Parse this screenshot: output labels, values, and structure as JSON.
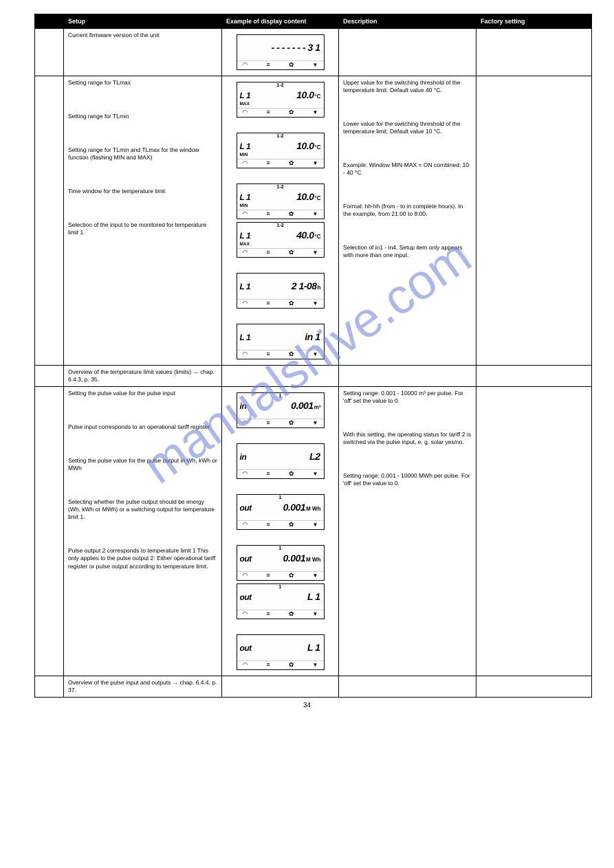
{
  "header": {
    "col1": "",
    "col2": "Setup",
    "col3": "Example of display content",
    "col4": "Description",
    "col5": "Factory setting"
  },
  "rows": [
    {
      "id": "1",
      "setup": "Current firmware version of the unit",
      "description": "",
      "factory": "",
      "cells_merged": false,
      "lcds": [
        {
          "top": "",
          "left": "",
          "value": "- - - - - - - 3 1",
          "unit": "",
          "sub": ""
        }
      ]
    },
    {
      "id": "2",
      "setup": "Setting range for TLmax",
      "description": "Upper value for the switching threshold of the temperature limit. Default value 40 °C.",
      "factory": "",
      "lcds": [
        {
          "top": "1-2",
          "left": "L 1",
          "value": "10.0",
          "unit": "°C",
          "sub": "MAX"
        }
      ]
    },
    {
      "id": "2b",
      "setup": "Setting range for TLmin",
      "description": "Lower value for the switching threshold of the temperature limit. Default value 10 °C.",
      "factory": "",
      "same_row": true,
      "lcds": [
        {
          "top": "1-2",
          "left": "L 1",
          "value": "10.0",
          "unit": "°C",
          "sub": "MIN"
        }
      ]
    },
    {
      "id": "2c",
      "setup": "Setting range for TLmin and TLmax for the window function (flashing MIN and MAX)",
      "description": "Example: Window MIN-MAX = ON combined: 10 - 40 °C",
      "factory": "",
      "same_row": true,
      "lcds": [
        {
          "top": "1-2",
          "left": "L 1",
          "value": "10.0",
          "unit": "°C",
          "sub": "MIN"
        },
        {
          "top": "1-2",
          "left": "L 1",
          "value": "40.0",
          "unit": "°C",
          "sub": "MAX"
        }
      ]
    },
    {
      "id": "2d",
      "setup": "Time window for the temperature limit",
      "description": "Format: hh-hh (from - to in complete hours). In the example, from 21:00 to 8:00.",
      "factory": "",
      "same_row": true,
      "lcds": [
        {
          "top": "",
          "left": "L 1",
          "value": "2 1-08",
          "unit": "h",
          "sub": ""
        }
      ]
    },
    {
      "id": "2e",
      "setup": "Selection of the input to be monitored for temperature limit 1",
      "description": "Selection of in1 - in4. Setup item only appears with more than one input.",
      "factory": "",
      "same_row": true,
      "lcds": [
        {
          "top": "",
          "left": "L 1",
          "value": "in 1",
          "unit": "",
          "sub": ""
        }
      ]
    },
    {
      "id": "3",
      "setup": "Overview of the temperature limit values (limits) → chap. 6.4.3, p. 35.",
      "description": "",
      "factory": "",
      "lcds": []
    },
    {
      "id": "4",
      "setup": "Setting the pulse value for the pulse input",
      "description": "Setting range: 0.001 - 10000 m³ per pulse. For 'off' set the value to 0.",
      "factory": "",
      "lcds": [
        {
          "top": "1",
          "left": "in",
          "value": "0.001",
          "unit": "m³",
          "sub": ""
        }
      ]
    },
    {
      "id": "4b",
      "setup": "Pulse input corresponds to an operational tariff register",
      "description": "With this setting, the operating status for tariff 2 is switched via the pulse input, e. g. solar yes/no.",
      "factory": "",
      "same_row": true,
      "lcds": [
        {
          "top": "",
          "left": "in",
          "value": "L2",
          "unit": "",
          "sub": ""
        }
      ]
    },
    {
      "id": "4c",
      "setup": "Setting the pulse value for the pulse output in Wh, kWh or MWh",
      "description": "Setting range: 0.001 - 10000 MWh per pulse. For 'off' set the value to 0.",
      "factory": "",
      "same_row": true,
      "lcds": [
        {
          "top": "1",
          "left": "out",
          "value": "0.001",
          "unit": "M Wh",
          "sub": ""
        }
      ]
    },
    {
      "id": "4d",
      "setup": "Selecting whether the pulse output should be energy (Wh, kWh or MWh) or a switching output for temperature limit 1.",
      "description": "",
      "factory": "",
      "same_row": true,
      "lcds": [
        {
          "top": "1",
          "left": "out",
          "value": "0.001",
          "unit": "M Wh",
          "sub": ""
        },
        {
          "top": "1",
          "left": "out",
          "value": "L 1",
          "unit": "",
          "sub": ""
        }
      ]
    },
    {
      "id": "4e",
      "setup": "Pulse output 2 corresponds to temperature limit 1 This only applies to the pulse output 2: Either operational tariff register or pulse output according to temperature limit.",
      "description": "",
      "factory": "",
      "same_row": true,
      "lcds": [
        {
          "top": "",
          "left": "out",
          "value": "L 1",
          "unit": "",
          "sub": ""
        }
      ]
    },
    {
      "id": "5",
      "setup": "Overview of the pulse input and outputs → chap. 6.4.4, p. 37.",
      "description": "",
      "factory": "",
      "lcds": []
    }
  ],
  "watermark": "manualshive.com",
  "page_number": "34"
}
